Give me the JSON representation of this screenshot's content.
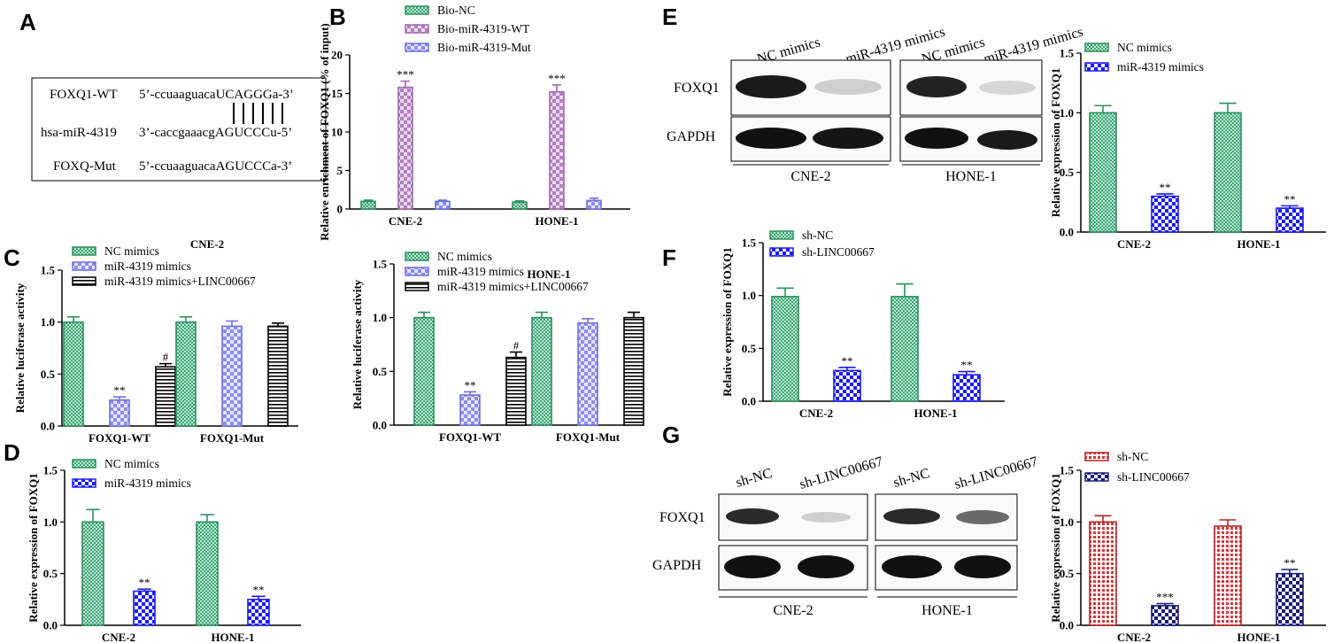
{
  "panels": {
    "A": {
      "letter": "A",
      "rows": [
        {
          "name": "FOXQ1-WT",
          "seq": "5’-ccuaaguacaUCAGGGa-3’"
        },
        {
          "name": "hsa-miR-4319",
          "seq": "3’-caccgaaacgAGUCCCu-5’"
        },
        {
          "name": "FOXQ-Mut",
          "seq": "5’-ccuaaguacaAGUCCCa-3’"
        }
      ]
    },
    "E": {
      "letter": "E",
      "lane_labels": [
        "NC mimics",
        "miR-4319 mimics",
        "NC mimics",
        "miR-4319 mimics"
      ],
      "row_labels": [
        "FOXQ1",
        "GAPDH"
      ],
      "cell_labels": [
        "CNE-2",
        "HONE-1"
      ]
    },
    "G": {
      "letter": "G",
      "lane_labels": [
        "sh-NC",
        "sh-LINC00667",
        "sh-NC",
        "sh-LINC00667"
      ],
      "row_labels": [
        "FOXQ1",
        "GAPDH"
      ],
      "cell_labels": [
        "CNE-2",
        "HONE-1"
      ]
    }
  },
  "chart_data": [
    {
      "id": "B",
      "letter": "B",
      "type": "bar",
      "title": "",
      "ylabel": "Relative enrichment of FOXQ1 (% of input)",
      "ylim": [
        0,
        20
      ],
      "yticks": [
        "0",
        "5",
        "10",
        "15",
        "20"
      ],
      "categories": [
        "CNE-2",
        "HONE-1"
      ],
      "series": [
        {
          "name": "Bio-NC",
          "style": "green",
          "values": [
            1.0,
            0.9
          ],
          "errors": [
            0.15,
            0.15
          ],
          "stars": [
            "",
            ""
          ]
        },
        {
          "name": "Bio-miR-4319-WT",
          "style": "pink",
          "values": [
            15.8,
            15.2
          ],
          "errors": [
            0.8,
            0.9
          ],
          "stars": [
            "***",
            "***"
          ]
        },
        {
          "name": "Bio-miR-4319-Mut",
          "style": "lavender",
          "values": [
            1.0,
            1.1
          ],
          "errors": [
            0.15,
            0.3
          ],
          "stars": [
            "",
            ""
          ]
        }
      ]
    },
    {
      "id": "C1",
      "letter": "C",
      "type": "bar",
      "title": "CNE-2",
      "ylabel": "Relative luciferase activity",
      "ylim": [
        0,
        1.5
      ],
      "yticks": [
        "0.0",
        "0.5",
        "1.0",
        "1.5"
      ],
      "categories": [
        "FOXQ1-WT",
        "FOXQ1-Mut"
      ],
      "series": [
        {
          "name": "NC mimics",
          "style": "green",
          "values": [
            1.0,
            1.0
          ],
          "errors": [
            0.05,
            0.05
          ],
          "stars": [
            "",
            ""
          ]
        },
        {
          "name": "miR-4319 mimics",
          "style": "lavender",
          "values": [
            0.25,
            0.96
          ],
          "errors": [
            0.03,
            0.05
          ],
          "stars": [
            "**",
            ""
          ]
        },
        {
          "name": "miR-4319 mimics+LINC00667",
          "style": "hstripe",
          "values": [
            0.57,
            0.96
          ],
          "errors": [
            0.03,
            0.03
          ],
          "stars": [
            "#",
            ""
          ]
        }
      ]
    },
    {
      "id": "C2",
      "letter": "",
      "type": "bar",
      "title": "HONE-1",
      "ylabel": "Relative luciferase activity",
      "ylim": [
        0,
        1.5
      ],
      "yticks": [
        "0.0",
        "0.5",
        "1.0",
        "1.5"
      ],
      "categories": [
        "FOXQ1-WT",
        "FOXQ1-Mut"
      ],
      "series": [
        {
          "name": "NC mimics",
          "style": "green",
          "values": [
            1.0,
            1.0
          ],
          "errors": [
            0.05,
            0.05
          ],
          "stars": [
            "",
            ""
          ]
        },
        {
          "name": "miR-4319 mimics",
          "style": "lavender",
          "values": [
            0.28,
            0.95
          ],
          "errors": [
            0.03,
            0.04
          ],
          "stars": [
            "**",
            ""
          ]
        },
        {
          "name": "miR-4319 mimics+LINC00667",
          "style": "hstripe",
          "values": [
            0.63,
            1.0
          ],
          "errors": [
            0.05,
            0.05
          ],
          "stars": [
            "#",
            ""
          ]
        }
      ]
    },
    {
      "id": "D",
      "letter": "D",
      "type": "bar",
      "title": "",
      "ylabel": "Relative expression of FOXQ1",
      "ylim": [
        0,
        1.5
      ],
      "yticks": [
        "0.0",
        "0.5",
        "1.0",
        "1.5"
      ],
      "categories": [
        "CNE-2",
        "HONE-1"
      ],
      "series": [
        {
          "name": "NC mimics",
          "style": "green",
          "values": [
            1.0,
            1.0
          ],
          "errors": [
            0.12,
            0.07
          ],
          "stars": [
            "",
            ""
          ]
        },
        {
          "name": "miR-4319 mimics",
          "style": "blue",
          "values": [
            0.33,
            0.25
          ],
          "errors": [
            0.02,
            0.03
          ],
          "stars": [
            "**",
            "**"
          ]
        }
      ]
    },
    {
      "id": "E",
      "letter": "",
      "type": "bar",
      "title": "",
      "ylabel": "Relative expression of FOXQ1",
      "ylim": [
        0,
        1.5
      ],
      "yticks": [
        "0.0",
        "0.5",
        "1.0",
        "1.5"
      ],
      "categories": [
        "CNE-2",
        "HONE-1"
      ],
      "series": [
        {
          "name": "NC mimics",
          "style": "green",
          "values": [
            1.0,
            1.0
          ],
          "errors": [
            0.06,
            0.08
          ],
          "stars": [
            "",
            ""
          ]
        },
        {
          "name": "miR-4319 mimics",
          "style": "blue",
          "values": [
            0.3,
            0.2
          ],
          "errors": [
            0.02,
            0.02
          ],
          "stars": [
            "**",
            "**"
          ]
        }
      ]
    },
    {
      "id": "F",
      "letter": "F",
      "type": "bar",
      "title": "",
      "ylabel": "Relative expression of FOXQ1",
      "ylim": [
        0,
        1.5
      ],
      "yticks": [
        "0.0",
        "0.5",
        "1.0",
        "1.5"
      ],
      "categories": [
        "CNE-2",
        "HONE-1"
      ],
      "series": [
        {
          "name": "sh-NC",
          "style": "green",
          "values": [
            0.99,
            0.99
          ],
          "errors": [
            0.08,
            0.12
          ],
          "stars": [
            "",
            ""
          ]
        },
        {
          "name": "sh-LINC00667",
          "style": "blue",
          "values": [
            0.29,
            0.25
          ],
          "errors": [
            0.03,
            0.03
          ],
          "stars": [
            "**",
            "**"
          ]
        }
      ]
    },
    {
      "id": "G",
      "letter": "",
      "type": "bar",
      "title": "",
      "ylabel": "Relative expression of FOXQ1",
      "ylim": [
        0,
        1.5
      ],
      "yticks": [
        "0.0",
        "0.5",
        "1.0",
        "1.5"
      ],
      "categories": [
        "CNE-2",
        "HONE-1"
      ],
      "series": [
        {
          "name": "sh-NC",
          "style": "red",
          "values": [
            1.0,
            0.96
          ],
          "errors": [
            0.06,
            0.06
          ],
          "stars": [
            "",
            ""
          ]
        },
        {
          "name": "sh-LINC00667",
          "style": "navy",
          "values": [
            0.19,
            0.5
          ],
          "errors": [
            0.02,
            0.04
          ],
          "stars": [
            "***",
            "**"
          ]
        }
      ]
    }
  ]
}
